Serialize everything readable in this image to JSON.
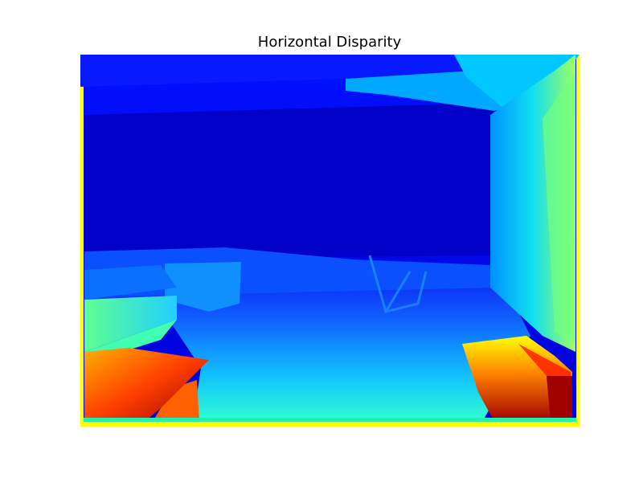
{
  "figure": {
    "title": "Horizontal Disparity",
    "colormap": "jet",
    "colors": {
      "far": "#0000cd",
      "near": "#800000",
      "border": "#ffff00"
    }
  }
}
